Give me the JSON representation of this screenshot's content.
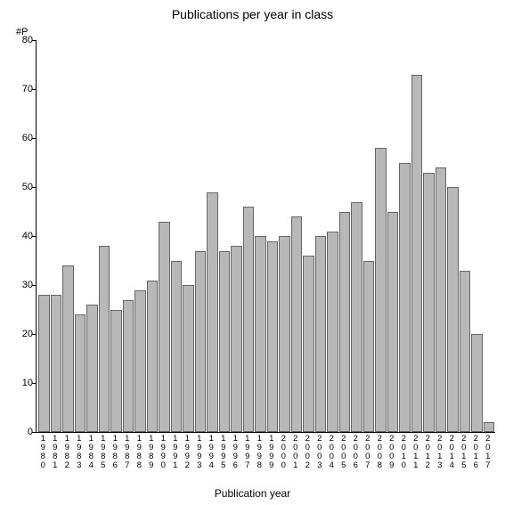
{
  "chart": {
    "type": "bar",
    "title": "Publications per year in class",
    "title_fontsize": 14,
    "y_axis_unit_label": "#P",
    "x_axis_label": "Publication year",
    "label_fontsize": 12,
    "ylim": [
      0,
      80
    ],
    "ytick_step": 10,
    "yticks": [
      0,
      10,
      20,
      30,
      40,
      50,
      60,
      70,
      80
    ],
    "categories": [
      "1980",
      "1981",
      "1982",
      "1983",
      "1984",
      "1985",
      "1986",
      "1987",
      "1988",
      "1989",
      "1990",
      "1991",
      "1992",
      "1993",
      "1994",
      "1995",
      "1996",
      "1997",
      "1998",
      "1999",
      "2000",
      "2001",
      "2002",
      "2003",
      "2004",
      "2005",
      "2006",
      "2007",
      "2008",
      "2009",
      "2010",
      "2011",
      "2012",
      "2013",
      "2014",
      "2015",
      "2016",
      "2017"
    ],
    "values": [
      28,
      28,
      34,
      24,
      26,
      38,
      25,
      27,
      29,
      31,
      43,
      35,
      30,
      37,
      49,
      37,
      38,
      46,
      40,
      39,
      40,
      44,
      36,
      40,
      41,
      45,
      47,
      35,
      58,
      45,
      55,
      73,
      53,
      54,
      50,
      33,
      20,
      2
    ],
    "bar_color": "#b8b8b8",
    "bar_border_color": "#666666",
    "background_color": "#ffffff",
    "axis_color": "#000000",
    "bar_gap": 1
  }
}
